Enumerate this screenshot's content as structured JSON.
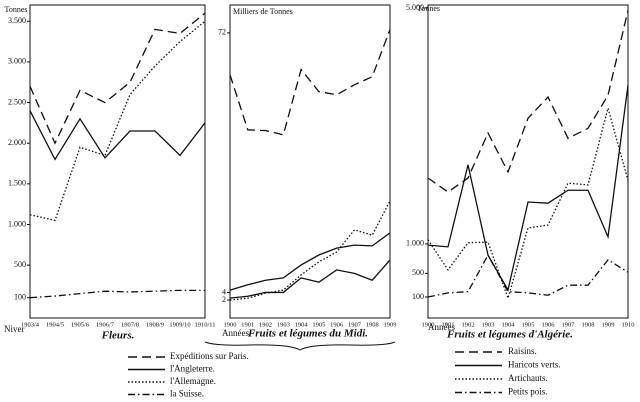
{
  "chart_data": [
    {
      "type": "line",
      "title": "Fleurs.",
      "y_label": "Tonnes",
      "x_label": "Niver",
      "categories": [
        "1903/4",
        "1904/5",
        "1905/6",
        "1906/7",
        "1907/8",
        "1908/9",
        "1909/10",
        "1910/11"
      ],
      "ylim": [
        -150,
        3700
      ],
      "yticks": [
        100,
        500,
        {
          "value": 1000,
          "label": "1.000"
        },
        {
          "value": 1500,
          "label": "1.500"
        },
        {
          "value": 2000,
          "label": "2.000"
        },
        {
          "value": 2500,
          "label": "2.500"
        },
        {
          "value": 3000,
          "label": "3.000"
        },
        {
          "value": 3500,
          "label": "3.500"
        }
      ],
      "series": [
        {
          "name": "Expéditions sur Paris.",
          "color": "#111",
          "dash": "9,5",
          "values": [
            2700,
            2000,
            2650,
            2500,
            2750,
            3400,
            3350,
            3600
          ]
        },
        {
          "name": "l'Angleterre.",
          "color": "#111",
          "dash": "none",
          "values": [
            2400,
            1800,
            2300,
            1820,
            2150,
            2150,
            1850,
            2250
          ]
        },
        {
          "name": "l'Allemagne.",
          "color": "#111",
          "dash": "1.5,2",
          "values": [
            1120,
            1050,
            1950,
            1850,
            2600,
            2950,
            3250,
            3500
          ]
        },
        {
          "name": "la Suisse.",
          "color": "#111",
          "dash": "7,3,1.5,3",
          "values": [
            100,
            120,
            150,
            180,
            170,
            180,
            190,
            190
          ]
        }
      ]
    },
    {
      "type": "line",
      "title": "Fruits et légumes du Midi.",
      "y_label": "Milliers de Tonnes",
      "x_label": "Années",
      "categories": [
        "1900",
        "1901",
        "1902",
        "1903",
        "1904",
        "1905",
        "1906",
        "1907",
        "1908",
        "1909"
      ],
      "ylim": [
        -2.7,
        79.3
      ],
      "yticks": [
        2,
        4,
        72
      ],
      "series": [
        {
          "color": "#111",
          "dash": "9,5",
          "values": [
            61,
            46.6,
            46.4,
            45.3,
            62.4,
            56.6,
            55.8,
            58.4,
            60.5,
            72.9
          ]
        },
        {
          "color": "#111",
          "dash": "none",
          "values": [
            4.6,
            6,
            7.2,
            7.8,
            11.2,
            13.8,
            15.6,
            16.4,
            16.2,
            19.6
          ]
        },
        {
          "color": "#111",
          "dash": "1.5,2",
          "values": [
            2,
            2.5,
            3.8,
            4.6,
            8.6,
            12,
            14.6,
            20.4,
            19,
            28
          ]
        },
        {
          "color": "#111",
          "dash": "none",
          "values": [
            2.5,
            3,
            4,
            4,
            7.8,
            6.7,
            9.9,
            9,
            7.2,
            12.5
          ]
        }
      ]
    },
    {
      "type": "line",
      "title": "Fruits et légumes d'Algérie.",
      "y_label": "Tonnes",
      "x_label": "Années",
      "categories": [
        "1900",
        "1901",
        "1902",
        "1903",
        "1904",
        "1905",
        "1906",
        "1907",
        "1908",
        "1909",
        "1910"
      ],
      "ylim": [
        -256,
        5050
      ],
      "yticks": [
        100,
        500,
        {
          "value": 1000,
          "label": "1.000"
        },
        {
          "value": 5000,
          "label": "5.000"
        }
      ],
      "series": [
        {
          "name": "Raisins.",
          "color": "#111",
          "dash": "9,5",
          "values": [
            2117,
            1880,
            2117,
            2880,
            2220,
            3130,
            3490,
            2790,
            2960,
            3520,
            4960
          ]
        },
        {
          "name": "Haricots verts.",
          "color": "#111",
          "dash": "none",
          "values": [
            980,
            950,
            2340,
            810,
            220,
            1710,
            1690,
            1910,
            1910,
            1120,
            3690
          ]
        },
        {
          "name": "Artichauts.",
          "color": "#111",
          "dash": "1.5,2",
          "values": [
            1070,
            560,
            1020,
            1030,
            80,
            1270,
            1320,
            2030,
            2000,
            3300,
            2080
          ]
        },
        {
          "name": "Petits pois.",
          "color": "#111",
          "dash": "7,3,1.5,3",
          "values": [
            100,
            170,
            190,
            810,
            190,
            170,
            130,
            300,
            300,
            730,
            520
          ]
        }
      ]
    }
  ]
}
